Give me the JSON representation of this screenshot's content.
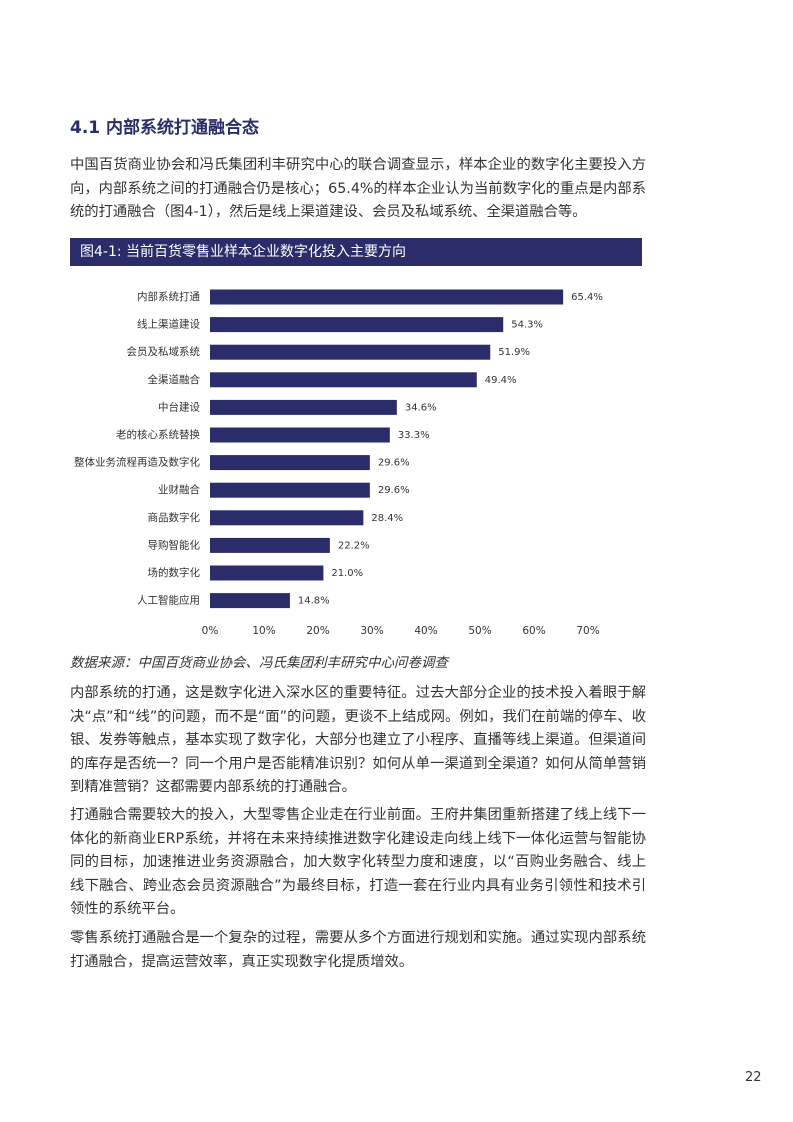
{
  "heading": "4.1 内部系统打通融合态",
  "intro": "中国百货商业协会和冯氏集团利丰研究中心的联合调查显示，样本企业的数字化主要投入方向，内部系统之间的打通融合仍是核心；65.4%的样本企业认为当前数字化的重点是内部系统的打通融合（图4-1），然后是线上渠道建设、会员及私域系统、全渠道融合等。",
  "figure_title": "图4-1: 当前百货零售业样本企业数字化投入主要方向",
  "chart_data": {
    "type": "bar",
    "orientation": "horizontal",
    "categories": [
      "内部系统打通",
      "线上渠道建设",
      "会员及私域系统",
      "全渠道融合",
      "中台建设",
      "老的核心系统替换",
      "整体业务流程再造及数字化",
      "业财融合",
      "商品数字化",
      "导购智能化",
      "场的数字化",
      "人工智能应用"
    ],
    "values": [
      65.4,
      54.3,
      51.9,
      49.4,
      34.6,
      33.3,
      29.6,
      29.6,
      28.4,
      22.2,
      21.0,
      14.8
    ],
    "value_labels": [
      "65.4%",
      "54.3%",
      "51.9%",
      "49.4%",
      "34.6%",
      "33.3%",
      "29.6%",
      "29.6%",
      "28.4%",
      "22.2%",
      "21.0%",
      "14.8%"
    ],
    "color": "#2b2d6b",
    "xlim": [
      0,
      70
    ],
    "xticks": [
      {
        "value": 0,
        "label": "0%"
      },
      {
        "value": 10,
        "label": "10%"
      },
      {
        "value": 20,
        "label": "20%"
      },
      {
        "value": 30,
        "label": "30%"
      },
      {
        "value": 40,
        "label": "40%"
      },
      {
        "value": 50,
        "label": "50%"
      },
      {
        "value": 60,
        "label": "60%"
      },
      {
        "value": 70,
        "label": "70%"
      }
    ],
    "grid": false
  },
  "source": "数据来源：中国百货商业协会、冯氏集团利丰研究中心问卷调查",
  "paragraphs": [
    "内部系统的打通，这是数字化进入深水区的重要特征。过去大部分企业的技术投入着眼于解决“点”和“线”的问题，而不是“面”的问题，更谈不上结成网。例如，我们在前端的停车、收银、发券等触点，基本实现了数字化，大部分也建立了小程序、直播等线上渠道。但渠道间的库存是否统一？同一个用户是否能精准识别？如何从单一渠道到全渠道？如何从简单营销到精准营销？这都需要内部系统的打通融合。",
    "打通融合需要较大的投入，大型零售企业走在行业前面。王府井集团重新搭建了线上线下一体化的新商业ERP系统，并将在未来持续推进数字化建设走向线上线下一体化运营与智能协同的目标，加速推进业务资源融合，加大数字化转型力度和速度，以“百购业务融合、线上线下融合、跨业态会员资源融合”为最终目标，打造一套在行业内具有业务引领性和技术引领性的系统平台。",
    "零售系统打通融合是一个复杂的过程，需要从多个方面进行规划和实施。通过实现内部系统打通融合，提高运营效率，真正实现数字化提质增效。"
  ],
  "page_number": "22"
}
